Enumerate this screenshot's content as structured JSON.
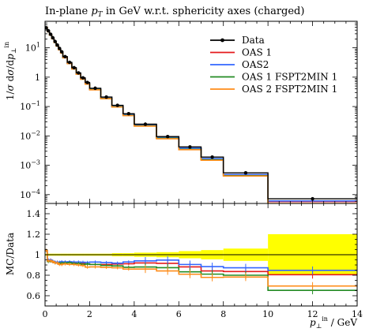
{
  "chart_data": {
    "type": "line",
    "title": "In-plane p_T in GeV w.r.t. sphericity axes (charged)",
    "xlabel": "p_⊥^in / GeV",
    "ylabel_main": "1/σ dσ/dp_⊥^in",
    "ylabel_ratio": "MC/Data",
    "xlim": [
      0,
      14
    ],
    "ylim_main": [
      5e-05,
      80
    ],
    "yscale_main": "log",
    "ylim_ratio": [
      0.5,
      1.5
    ],
    "grid": false,
    "legend_position": "top-right",
    "x_ticks": [
      "0",
      "2",
      "4",
      "6",
      "8",
      "10",
      "12",
      "14"
    ],
    "y_ticks_main": [
      {
        "value": 10,
        "base": "10",
        "exp": "1"
      },
      {
        "value": 1,
        "base": "1",
        "exp": ""
      },
      {
        "value": 0.1,
        "base": "10",
        "exp": "−1"
      },
      {
        "value": 0.01,
        "base": "10",
        "exp": "−2"
      },
      {
        "value": 0.001,
        "base": "10",
        "exp": "−3"
      },
      {
        "value": 0.0001,
        "base": "10",
        "exp": "−4"
      }
    ],
    "y_ticks_ratio": [
      "0.6",
      "0.8",
      "1",
      "1.2",
      "1.4"
    ],
    "bin_edges": [
      0,
      0.1,
      0.2,
      0.3,
      0.4,
      0.5,
      0.6,
      0.7,
      0.8,
      1.0,
      1.2,
      1.4,
      1.6,
      1.8,
      2.0,
      2.5,
      3.0,
      3.5,
      4.0,
      5.0,
      6.0,
      7.0,
      8.0,
      10.0,
      14.0
    ],
    "data": {
      "name": "Data",
      "color": "#000000",
      "values": [
        48,
        38,
        29,
        22,
        16.5,
        12.5,
        9.5,
        7.3,
        5.0,
        3.2,
        2.1,
        1.4,
        0.95,
        0.66,
        0.42,
        0.21,
        0.11,
        0.057,
        0.025,
        0.0095,
        0.0042,
        0.0019,
        0.00055,
        7.2e-05
      ]
    },
    "series": [
      {
        "name": "OAS 1",
        "color": "#e41a1c",
        "values": [
          50,
          36,
          27.5,
          20.5,
          15.3,
          11.5,
          8.7,
          6.7,
          4.6,
          2.95,
          1.93,
          1.28,
          0.87,
          0.6,
          0.38,
          0.19,
          0.1,
          0.052,
          0.023,
          0.0087,
          0.0037,
          0.0016,
          0.00046,
          5.8e-05
        ]
      },
      {
        "name": "OAS2",
        "color": "#3366ff",
        "values": [
          50,
          36,
          27.5,
          20.6,
          15.3,
          11.6,
          8.8,
          6.8,
          4.65,
          2.98,
          1.95,
          1.3,
          0.88,
          0.61,
          0.39,
          0.194,
          0.101,
          0.053,
          0.0235,
          0.009,
          0.0038,
          0.00168,
          0.00048,
          6.1e-05
        ]
      },
      {
        "name": "OAS 1 FSPT2MIN 1",
        "color": "#238b23",
        "values": [
          50,
          35.5,
          27.2,
          20.5,
          15.2,
          11.5,
          8.7,
          6.7,
          4.6,
          2.95,
          1.92,
          1.28,
          0.86,
          0.6,
          0.38,
          0.188,
          0.098,
          0.05,
          0.022,
          0.0083,
          0.0035,
          0.00154,
          0.00044,
          4.7e-05
        ]
      },
      {
        "name": "OAS 2 FSPT2MIN 1",
        "color": "#ff8c1a",
        "values": [
          50,
          35.7,
          27.3,
          20.5,
          15.2,
          11.5,
          8.6,
          6.6,
          4.55,
          2.9,
          1.9,
          1.26,
          0.85,
          0.58,
          0.37,
          0.184,
          0.096,
          0.049,
          0.0215,
          0.008,
          0.0034,
          0.00148,
          0.00043,
          5e-05
        ]
      }
    ],
    "ratio_band": {
      "color": "#ffff00",
      "upper": [
        1.01,
        1.01,
        1.01,
        1.01,
        1.01,
        1.01,
        1.01,
        1.01,
        1.01,
        1.01,
        1.01,
        1.01,
        1.01,
        1.01,
        1.01,
        1.01,
        1.015,
        1.015,
        1.02,
        1.025,
        1.035,
        1.045,
        1.06,
        1.2
      ],
      "lower": [
        0.99,
        0.99,
        0.99,
        0.99,
        0.99,
        0.99,
        0.99,
        0.99,
        0.99,
        0.99,
        0.99,
        0.99,
        0.99,
        0.99,
        0.99,
        0.99,
        0.985,
        0.985,
        0.98,
        0.975,
        0.965,
        0.955,
        0.94,
        0.8
      ]
    }
  }
}
